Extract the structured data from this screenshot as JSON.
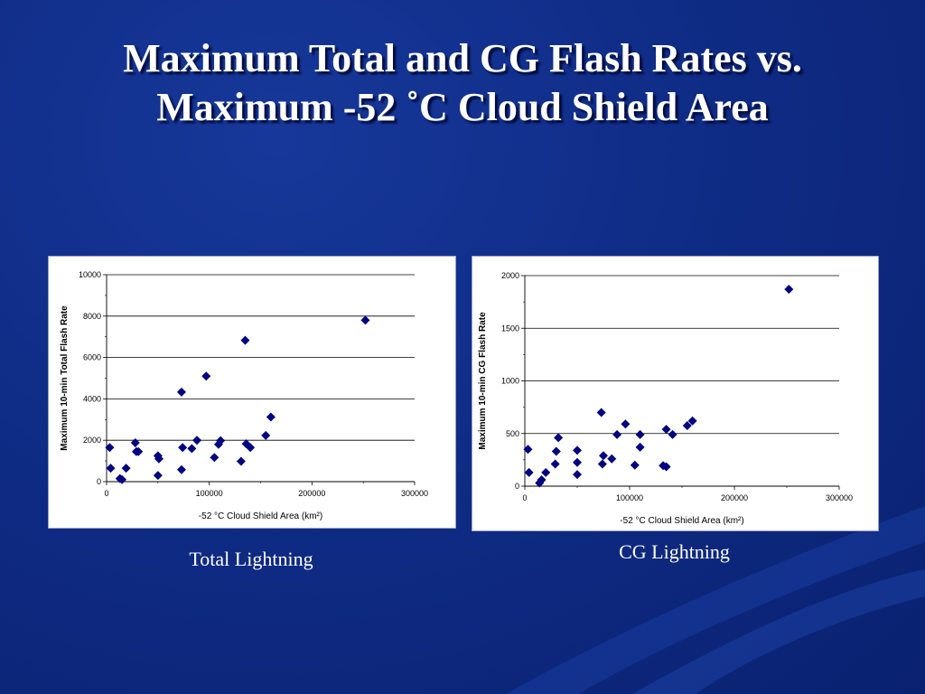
{
  "slide": {
    "title_line1": "Maximum Total and CG Flash Rates vs.",
    "title_line2": "Maximum -52 ˚C Cloud Shield Area",
    "caption_left": "Total Lightning",
    "caption_right": "CG Lightning",
    "background_color": "#0f2c86",
    "marker_color": "#000080"
  },
  "chart_data": [
    {
      "type": "scatter",
      "title": "",
      "xlabel": "-52 °C Cloud Shield Area (km²)",
      "ylabel": "Maximum 10-min Total Flash Rate",
      "xlim": [
        0,
        300000
      ],
      "ylim": [
        0,
        10000
      ],
      "x_ticks": [
        "0",
        "100000",
        "200000",
        "300000"
      ],
      "y_ticks": [
        "0",
        "2000",
        "4000",
        "6000",
        "8000",
        "10000"
      ],
      "grid": "horizontal",
      "points": [
        [
          3000,
          1650
        ],
        [
          4000,
          650
        ],
        [
          13000,
          150
        ],
        [
          15000,
          100
        ],
        [
          19000,
          650
        ],
        [
          28000,
          1880
        ],
        [
          29000,
          1450
        ],
        [
          31000,
          1450
        ],
        [
          50000,
          1250
        ],
        [
          51000,
          1100
        ],
        [
          50000,
          300
        ],
        [
          73000,
          4330
        ],
        [
          74000,
          1650
        ],
        [
          73000,
          580
        ],
        [
          83000,
          1600
        ],
        [
          88000,
          2000
        ],
        [
          97000,
          5100
        ],
        [
          105000,
          1170
        ],
        [
          109000,
          1800
        ],
        [
          111000,
          1980
        ],
        [
          131000,
          980
        ],
        [
          135000,
          6830
        ],
        [
          136000,
          1830
        ],
        [
          140000,
          1650
        ],
        [
          155000,
          2230
        ],
        [
          160000,
          3120
        ],
        [
          252000,
          7800
        ]
      ]
    },
    {
      "type": "scatter",
      "title": "",
      "xlabel": "-52 °C Cloud Shield Area (km²)",
      "ylabel": "Maximum 10-min CG Flash Rate",
      "xlim": [
        0,
        300000
      ],
      "ylim": [
        0,
        2000
      ],
      "x_ticks": [
        "0",
        "100000",
        "200000",
        "300000"
      ],
      "y_ticks": [
        "0",
        "500",
        "1000",
        "1500",
        "2000"
      ],
      "grid": "horizontal",
      "points": [
        [
          3000,
          350
        ],
        [
          4000,
          130
        ],
        [
          14000,
          30
        ],
        [
          16000,
          60
        ],
        [
          20000,
          130
        ],
        [
          29000,
          210
        ],
        [
          30000,
          330
        ],
        [
          32000,
          460
        ],
        [
          50000,
          110
        ],
        [
          50000,
          225
        ],
        [
          50000,
          340
        ],
        [
          73000,
          700
        ],
        [
          74000,
          210
        ],
        [
          75000,
          290
        ],
        [
          83000,
          260
        ],
        [
          88000,
          490
        ],
        [
          96000,
          590
        ],
        [
          105000,
          200
        ],
        [
          110000,
          370
        ],
        [
          110000,
          490
        ],
        [
          132000,
          195
        ],
        [
          135000,
          540
        ],
        [
          135000,
          185
        ],
        [
          141000,
          490
        ],
        [
          155000,
          575
        ],
        [
          160000,
          620
        ],
        [
          252000,
          1870
        ]
      ]
    }
  ]
}
